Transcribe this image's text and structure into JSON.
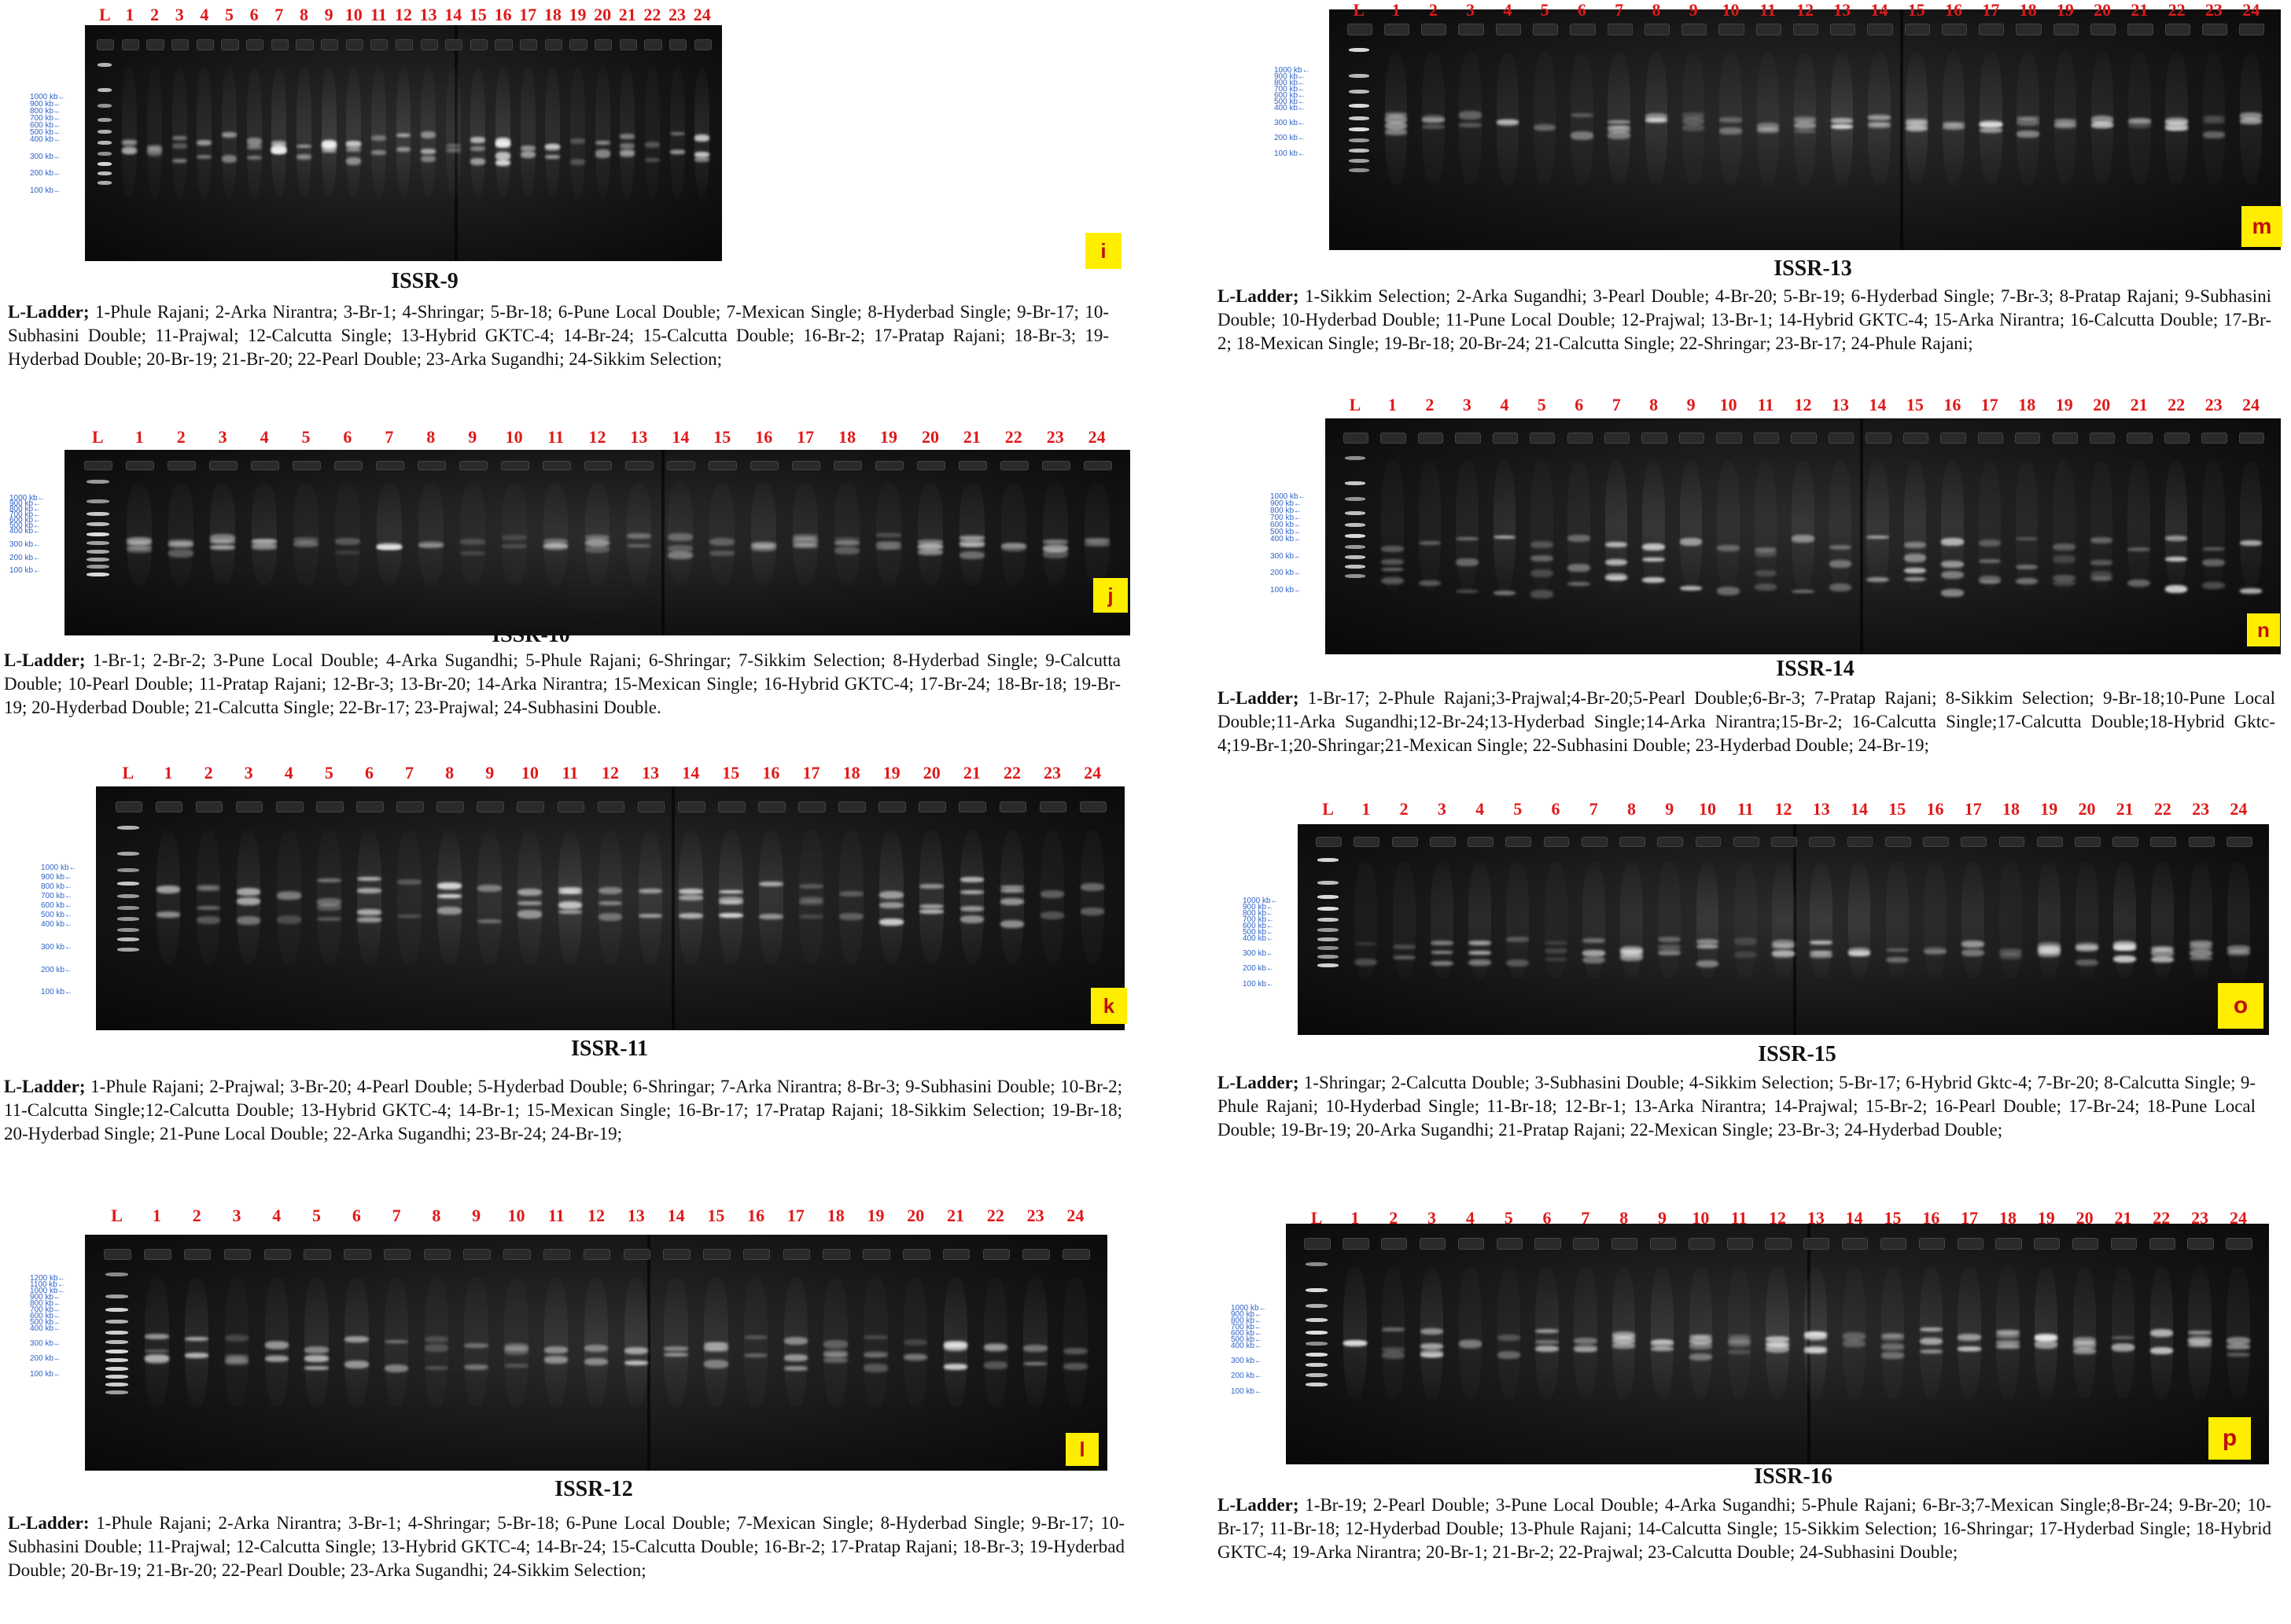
{
  "panels": [
    {
      "id": "i",
      "badge": "i",
      "title": "ISSR-9",
      "lanes": [
        "L",
        "1",
        "2",
        "3",
        "4",
        "5",
        "6",
        "7",
        "8",
        "9",
        "10",
        "11",
        "12",
        "13",
        "14",
        "15",
        "16",
        "17",
        "18",
        "19",
        "20",
        "21",
        "22",
        "23",
        "24"
      ],
      "ladder_marks": [
        "1000 kb",
        "900 kb",
        "800 kb",
        "700 kb",
        "600 kb",
        "500 kb",
        "400 kb",
        "300 kb",
        "200 kb",
        "100 kb"
      ],
      "legend_head": "L-Ladder;",
      "legend": "1-Phule Rajani; 2-Arka Nirantra; 3-Br-1; 4-Shringar; 5-Br-18; 6-Pune Local Double; 7-Mexican Single; 8-Hyderbad Single; 9-Br-17; 10-Subhasini Double; 11-Prajwal; 12-Calcutta Single; 13-Hybrid GKTC-4; 14-Br-24; 15-Calcutta Double; 16-Br-2; 17-Pratap Rajani; 18-Br-3; 19-Hyderbad Double; 20-Br-19; 21-Br-20; 22-Pearl Double; 23-Arka Sugandhi; 24-Sikkim Selection;"
    },
    {
      "id": "j",
      "badge": "j",
      "title": "ISSR-10",
      "lanes": [
        "L",
        "1",
        "2",
        "3",
        "4",
        "5",
        "6",
        "7",
        "8",
        "9",
        "10",
        "11",
        "12",
        "13",
        "14",
        "15",
        "16",
        "17",
        "18",
        "19",
        "20",
        "21",
        "22",
        "23",
        "24"
      ],
      "ladder_marks": [
        "1000 kb",
        "900 kb",
        "800 kb",
        "700 kb",
        "600 kb",
        "500 kb",
        "400 kb",
        "300 kb",
        "200 kb",
        "100 kb"
      ],
      "legend_head": "L-Ladder;",
      "legend": "1-Br-1; 2-Br-2; 3-Pune Local Double; 4-Arka Sugandhi; 5-Phule Rajani; 6-Shringar; 7-Sikkim Selection; 8-Hyderbad Single; 9-Calcutta Double; 10-Pearl Double; 11-Pratap Rajani; 12-Br-3; 13-Br-20; 14-Arka Nirantra; 15-Mexican Single; 16-Hybrid GKTC-4; 17-Br-24; 18-Br-18; 19-Br-19; 20-Hyderbad Double; 21-Calcutta Single; 22-Br-17; 23-Prajwal; 24-Subhasini Double."
    },
    {
      "id": "k",
      "badge": "k",
      "title": "ISSR-11",
      "lanes": [
        "L",
        "1",
        "2",
        "3",
        "4",
        "5",
        "6",
        "7",
        "8",
        "9",
        "10",
        "11",
        "12",
        "13",
        "14",
        "15",
        "16",
        "17",
        "18",
        "19",
        "20",
        "21",
        "22",
        "23",
        "24"
      ],
      "ladder_marks": [
        "1000 kb",
        "900 kb",
        "800 kb",
        "700 kb",
        "600 kb",
        "500 kb",
        "400 kb",
        "300 kb",
        "200 kb",
        "100 kb"
      ],
      "legend_head": "L-Ladder;",
      "legend": "1-Phule Rajani; 2-Prajwal; 3-Br-20; 4-Pearl Double; 5-Hyderbad Double; 6-Shringar; 7-Arka Nirantra; 8-Br-3; 9-Subhasini Double; 10-Br-2; 11-Calcutta Single;12-Calcutta Double; 13-Hybrid GKTC-4; 14-Br-1; 15-Mexican Single; 16-Br-17; 17-Pratap Rajani; 18-Sikkim Selection; 19-Br-18; 20-Hyderbad Single; 21-Pune Local Double; 22-Arka Sugandhi; 23-Br-24; 24-Br-19;"
    },
    {
      "id": "l",
      "badge": "l",
      "title": "ISSR-12",
      "lanes": [
        "L",
        "1",
        "2",
        "3",
        "4",
        "5",
        "6",
        "7",
        "8",
        "9",
        "10",
        "11",
        "12",
        "13",
        "14",
        "15",
        "16",
        "17",
        "18",
        "19",
        "20",
        "21",
        "22",
        "23",
        "24"
      ],
      "ladder_marks": [
        "1200 kb",
        "1100 kb",
        "1000 kb",
        "900 kb",
        "800 kb",
        "700 kb",
        "600 kb",
        "500 kb",
        "400 kb",
        "300 kb",
        "200 kb",
        "100 kb"
      ],
      "legend_head": "L-Ladder:",
      "legend": "1-Phule Rajani; 2-Arka Nirantra; 3-Br-1; 4-Shringar; 5-Br-18; 6-Pune Local Double; 7-Mexican Single; 8-Hyderbad Single; 9-Br-17; 10-Subhasini Double; 11-Prajwal; 12-Calcutta Single; 13-Hybrid GKTC-4; 14-Br-24; 15-Calcutta Double; 16-Br-2; 17-Pratap Rajani; 18-Br-3; 19-Hyderbad Double; 20-Br-19; 21-Br-20; 22-Pearl Double; 23-Arka Sugandhi; 24-Sikkim Selection;"
    },
    {
      "id": "m",
      "badge": "m",
      "title": "ISSR-13",
      "lanes": [
        "L",
        "1",
        "2",
        "3",
        "4",
        "5",
        "6",
        "7",
        "8",
        "9",
        "10",
        "11",
        "12",
        "13",
        "14",
        "15",
        "16",
        "17",
        "18",
        "19",
        "20",
        "21",
        "22",
        "23",
        "24"
      ],
      "ladder_marks": [
        "1000 kb",
        "900 kb",
        "800 kb",
        "700 kb",
        "600 kb",
        "500 kb",
        "400 kb",
        "300 kb",
        "200 kb",
        "100 kb"
      ],
      "legend_head": "L-Ladder;",
      "legend": "1-Sikkim Selection; 2-Arka Sugandhi; 3-Pearl Double; 4-Br-20; 5-Br-19; 6-Hyderbad Single; 7-Br-3; 8-Pratap Rajani; 9-Subhasini Double; 10-Hyderbad Double; 11-Pune Local Double; 12-Prajwal; 13-Br-1; 14-Hybrid GKTC-4; 15-Arka Nirantra; 16-Calcutta Double; 17-Br-2; 18-Mexican Single; 19-Br-18; 20-Br-24; 21-Calcutta Single; 22-Shringar; 23-Br-17; 24-Phule Rajani;"
    },
    {
      "id": "n",
      "badge": "n",
      "title": "ISSR-14",
      "lanes": [
        "L",
        "1",
        "2",
        "3",
        "4",
        "5",
        "6",
        "7",
        "8",
        "9",
        "10",
        "11",
        "12",
        "13",
        "14",
        "15",
        "16",
        "17",
        "18",
        "19",
        "20",
        "21",
        "22",
        "23",
        "24"
      ],
      "ladder_marks": [
        "1000 kb",
        "900 kb",
        "800 kb",
        "700 kb",
        "600 kb",
        "500 kb",
        "400 kb",
        "300 kb",
        "200 kb",
        "100 kb"
      ],
      "legend_head": "L-Ladder;",
      "legend": "1-Br-17; 2-Phule Rajani;3-Prajwal;4-Br-20;5-Pearl Double;6-Br-3; 7-Pratap Rajani; 8-Sikkim Selection; 9-Br-18;10-Pune Local Double;11-Arka Sugandhi;12-Br-24;13-Hyderbad Single;14-Arka Nirantra;15-Br-2; 16-Calcutta Single;17-Calcutta Double;18-Hybrid Gktc-4;19-Br-1;20-Shringar;21-Mexican Single; 22-Subhasini Double; 23-Hyderbad Double; 24-Br-19;"
    },
    {
      "id": "o",
      "badge": "o",
      "title": "ISSR-15",
      "lanes": [
        "L",
        "1",
        "2",
        "3",
        "4",
        "5",
        "6",
        "7",
        "8",
        "9",
        "10",
        "11",
        "12",
        "13",
        "14",
        "15",
        "16",
        "17",
        "18",
        "19",
        "20",
        "21",
        "22",
        "23",
        "24"
      ],
      "ladder_marks": [
        "1000 kb",
        "900 kb",
        "800 kb",
        "700 kb",
        "600 kb",
        "500 kb",
        "400 kb",
        "300 kb",
        "200 kb",
        "100 kb"
      ],
      "legend_head": "L-Ladder;",
      "legend": "1-Shringar; 2-Calcutta Double; 3-Subhasini Double; 4-Sikkim Selection; 5-Br-17; 6-Hybrid Gktc-4; 7-Br-20; 8-Calcutta Single; 9-Phule Rajani; 10-Hyderbad Single; 11-Br-18; 12-Br-1; 13-Arka Nirantra; 14-Prajwal; 15-Br-2; 16-Pearl Double; 17-Br-24; 18-Pune Local Double; 19-Br-19; 20-Arka Sugandhi; 21-Pratap Rajani; 22-Mexican Single; 23-Br-3; 24-Hyderbad Double;"
    },
    {
      "id": "p",
      "badge": "p",
      "title": "ISSR-16",
      "lanes": [
        "L",
        "1",
        "2",
        "3",
        "4",
        "5",
        "6",
        "7",
        "8",
        "9",
        "10",
        "11",
        "12",
        "13",
        "14",
        "15",
        "16",
        "17",
        "18",
        "19",
        "20",
        "21",
        "22",
        "23",
        "24"
      ],
      "ladder_marks": [
        "1000 kb",
        "900 kb",
        "800 kb",
        "700 kb",
        "600 kb",
        "500 kb",
        "400 kb",
        "300 kb",
        "200 kb",
        "100 kb"
      ],
      "legend_head": "L-Ladder;",
      "legend": "1-Br-19; 2-Pearl Double; 3-Pune Local Double; 4-Arka Sugandhi; 5-Phule Rajani; 6-Br-3;7-Mexican Single;8-Br-24; 9-Br-20; 10-Br-17; 11-Br-18; 12-Hyderbad Double; 13-Phule Rajani; 14-Calcutta Single; 15-Sikkim Selection; 16-Shringar; 17-Hyderbad Single; 18-Hybrid GKTC-4; 19-Arka Nirantra; 20-Br-1; 21-Br-2; 22-Prajwal; 23-Calcutta Double; 24-Subhasini Double;"
    }
  ],
  "colors": {
    "lane_label": "#e01818",
    "marker": "#2e63c8",
    "badge_bg": "#ffee00",
    "badge_text": "#c01010",
    "gel_bg": "#141414"
  }
}
